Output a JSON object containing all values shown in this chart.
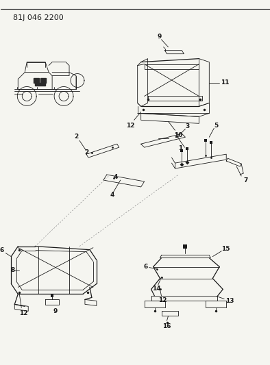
{
  "title": "81J 046 2200",
  "bg_color": "#f5f5f0",
  "line_color": "#1a1a1a",
  "fig_width": 3.94,
  "fig_height": 5.33,
  "dpi": 100,
  "title_fontsize": 8.5,
  "label_fontsize": 6.5
}
